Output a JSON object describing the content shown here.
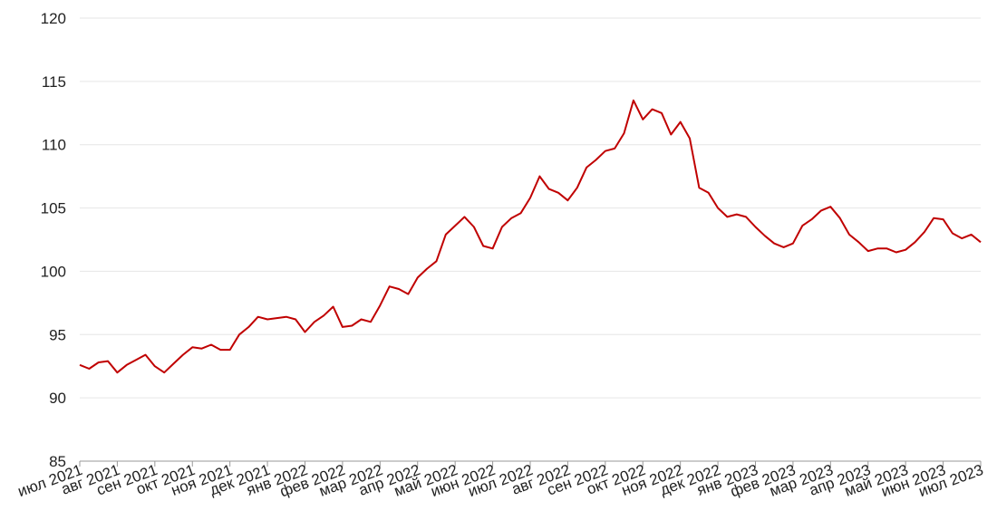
{
  "chart_data": {
    "type": "line",
    "x": [
      0,
      0.25,
      0.5,
      0.75,
      1,
      1.25,
      1.5,
      1.75,
      2,
      2.25,
      2.5,
      2.75,
      3,
      3.25,
      3.5,
      3.75,
      4,
      4.25,
      4.5,
      4.75,
      5,
      5.25,
      5.5,
      5.75,
      6,
      6.25,
      6.5,
      6.75,
      7,
      7.25,
      7.5,
      7.75,
      8,
      8.25,
      8.5,
      8.75,
      9,
      9.25,
      9.5,
      9.75,
      10,
      10.25,
      10.5,
      10.75,
      11,
      11.25,
      11.5,
      11.75,
      12,
      12.25,
      12.5,
      12.75,
      13,
      13.25,
      13.5,
      13.75,
      14,
      14.25,
      14.5,
      14.75,
      15,
      15.25,
      15.5,
      15.75,
      16,
      16.25,
      16.5,
      16.75,
      17,
      17.25,
      17.5,
      17.75,
      18,
      18.25,
      18.5,
      18.75,
      19,
      19.25,
      19.5,
      19.75,
      20,
      20.25,
      20.5,
      20.75,
      21,
      21.25,
      21.5,
      21.75,
      22,
      22.25,
      22.5,
      22.75,
      23,
      23.25,
      23.5,
      23.75,
      24
    ],
    "series": [
      {
        "color": "#c00000",
        "values": [
          92.6,
          92.3,
          92.8,
          92.9,
          92.0,
          92.6,
          93.0,
          93.4,
          92.5,
          92.0,
          92.7,
          93.4,
          94.0,
          93.9,
          94.2,
          93.8,
          93.8,
          95.0,
          95.6,
          96.4,
          96.2,
          96.3,
          96.4,
          96.2,
          95.2,
          96.0,
          96.5,
          97.2,
          95.6,
          95.7,
          96.2,
          96.0,
          97.3,
          98.8,
          98.6,
          98.2,
          99.5,
          100.2,
          100.8,
          102.9,
          103.6,
          104.3,
          103.5,
          102.0,
          101.8,
          103.5,
          104.2,
          104.6,
          105.8,
          107.5,
          106.5,
          106.2,
          105.6,
          106.6,
          108.2,
          108.8,
          109.5,
          109.7,
          110.9,
          113.5,
          112.0,
          112.8,
          112.5,
          110.8,
          111.8,
          110.5,
          106.6,
          106.2,
          105.0,
          104.3,
          104.5,
          104.3,
          103.5,
          102.8,
          102.2,
          101.9,
          102.2,
          103.6,
          104.1,
          104.8,
          105.1,
          104.2,
          102.9,
          102.3,
          101.6,
          101.8,
          101.8,
          101.5,
          101.7,
          102.3,
          103.1,
          104.2,
          104.1,
          103.0,
          102.6,
          102.9,
          102.3
        ]
      }
    ],
    "xlim": [
      0,
      24
    ],
    "xticks": [
      {
        "value": 0,
        "label": "июл 2021"
      },
      {
        "value": 1,
        "label": "авг 2021"
      },
      {
        "value": 2,
        "label": "сен 2021"
      },
      {
        "value": 3,
        "label": "окт 2021"
      },
      {
        "value": 4,
        "label": "ноя 2021"
      },
      {
        "value": 5,
        "label": "дек 2021"
      },
      {
        "value": 6,
        "label": "янв 2022"
      },
      {
        "value": 7,
        "label": "фев 2022"
      },
      {
        "value": 8,
        "label": "мар 2022"
      },
      {
        "value": 9,
        "label": "апр 2022"
      },
      {
        "value": 10,
        "label": "май 2022"
      },
      {
        "value": 11,
        "label": "июн 2022"
      },
      {
        "value": 12,
        "label": "июл 2022"
      },
      {
        "value": 13,
        "label": "авг 2022"
      },
      {
        "value": 14,
        "label": "сен 2022"
      },
      {
        "value": 15,
        "label": "окт 2022"
      },
      {
        "value": 16,
        "label": "ноя 2022"
      },
      {
        "value": 17,
        "label": "дек 2022"
      },
      {
        "value": 18,
        "label": "янв 2023"
      },
      {
        "value": 19,
        "label": "фев 2023"
      },
      {
        "value": 20,
        "label": "мар 2023"
      },
      {
        "value": 21,
        "label": "апр 2023"
      },
      {
        "value": 22,
        "label": "май 2023"
      },
      {
        "value": 23,
        "label": "июн 2023"
      },
      {
        "value": 24,
        "label": "июл 2023"
      }
    ],
    "ylim": [
      85,
      120
    ],
    "yticks": [
      85,
      90,
      95,
      100,
      105,
      110,
      115,
      120
    ],
    "grid": true
  }
}
